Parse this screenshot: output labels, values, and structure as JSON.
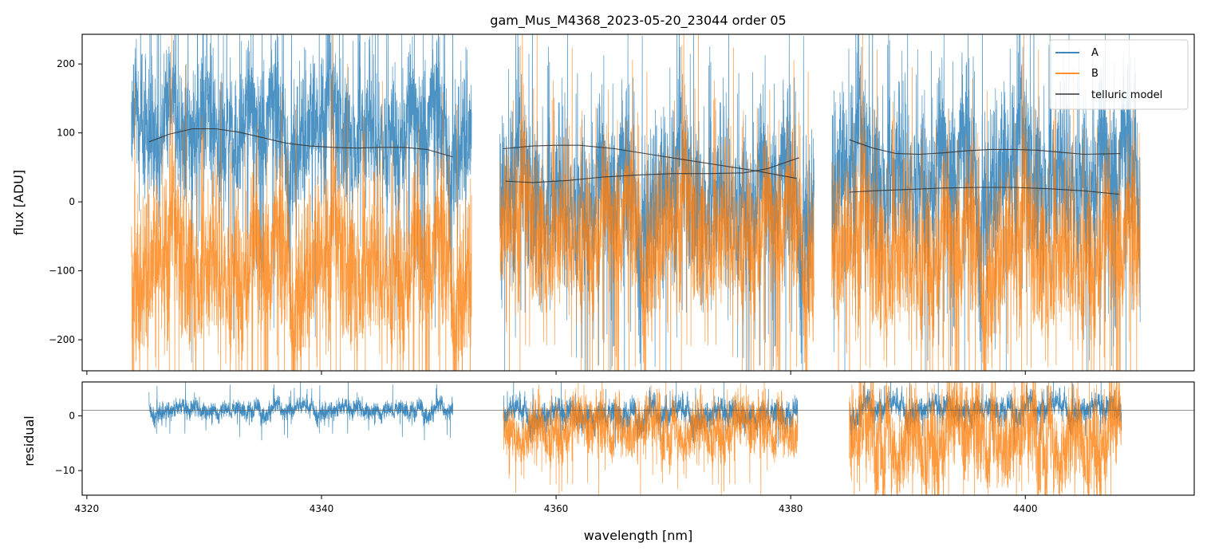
{
  "chart_data": [
    {
      "type": "line",
      "panel": "top",
      "title": "gam_Mus_M4368_2023-05-20_23044  order 05",
      "xlabel": "",
      "ylabel": "flux [ADU]",
      "xlim": [
        4319.6,
        4414.4
      ],
      "ylim": [
        -245,
        243
      ],
      "yticks": [
        -200,
        -100,
        0,
        100,
        200
      ],
      "yticklabels": [
        "−200",
        "−100",
        "0",
        "100",
        "200"
      ],
      "xticks": [
        4320,
        4340,
        4360,
        4380,
        4400
      ],
      "grid": false,
      "legend_position": "top-right",
      "segments": [
        {
          "range": [
            4323.8,
            4352.8
          ],
          "A_center": 105,
          "A_spread": 80,
          "B_center": -90,
          "B_spread": 95
        },
        {
          "range": [
            4355.2,
            4382.0
          ],
          "A_center": 10,
          "A_spread": 95,
          "B_center": -40,
          "B_spread": 90
        },
        {
          "range": [
            4383.5,
            4409.8
          ],
          "A_center": 40,
          "A_spread": 100,
          "B_center": -70,
          "B_spread": 95
        }
      ],
      "series": [
        {
          "name": "A",
          "color": "#1f77b4",
          "style": "noisy spectrum"
        },
        {
          "name": "B",
          "color": "#ff7f0e",
          "style": "noisy spectrum"
        },
        {
          "name": "telluric model",
          "color": "#333333",
          "lines": [
            {
              "x": [
                4325.3,
                4327,
                4329,
                4331,
                4333,
                4335,
                4337,
                4339,
                4341,
                4343,
                4345,
                4347,
                4349,
                4351.2
              ],
              "y": [
                87,
                98,
                106,
                106,
                101,
                93,
                85,
                81,
                79,
                78,
                79,
                79,
                76,
                65
              ]
            },
            {
              "x": [
                4355.5,
                4358,
                4360,
                4362,
                4365,
                4368,
                4371,
                4374,
                4377,
                4380.5
              ],
              "y": [
                77,
                81,
                82,
                82,
                77,
                69,
                61,
                53,
                45,
                34
              ]
            },
            {
              "x": [
                4355.7,
                4358,
                4361,
                4364,
                4367,
                4370,
                4373,
                4376,
                4378,
                4380.7
              ],
              "y": [
                30,
                28,
                31,
                36,
                39,
                41,
                41,
                42,
                48,
                64
              ]
            },
            {
              "x": [
                4385.0,
                4387,
                4389,
                4391,
                4393,
                4395,
                4397,
                4399,
                4401,
                4403,
                4405,
                4408.1
              ],
              "y": [
                90,
                78,
                70,
                69,
                71,
                74,
                76,
                76,
                75,
                72,
                69,
                70
              ]
            },
            {
              "x": [
                4385.0,
                4387,
                4390,
                4393,
                4396,
                4399,
                4402,
                4405,
                4408.0
              ],
              "y": [
                14,
                16,
                18,
                20,
                21,
                21,
                19,
                16,
                11
              ]
            }
          ]
        }
      ]
    },
    {
      "type": "line",
      "panel": "bottom",
      "xlabel": "wavelength [nm]",
      "ylabel": "residual",
      "xlim": [
        4319.6,
        4414.4
      ],
      "ylim": [
        -14.5,
        6.2
      ],
      "yticks": [
        -10,
        0
      ],
      "yticklabels": [
        "−10",
        "0"
      ],
      "xticks": [
        4320,
        4340,
        4360,
        4380,
        4400
      ],
      "xticklabels": [
        "4320",
        "4340",
        "4360",
        "4380",
        "4400"
      ],
      "reference_line": 1,
      "segments": [
        {
          "range": [
            4325.3,
            4351.2
          ],
          "A_center": 1.3,
          "A_spread": 1.4
        },
        {
          "range": [
            4355.5,
            4380.6
          ],
          "A_center": 0.5,
          "A_spread": 2.2,
          "B_center": -2.5,
          "B_spread": 4.5
        },
        {
          "range": [
            4385.0,
            4408.2
          ],
          "A_center": 1.5,
          "A_spread": 2.0,
          "B_center": -4.0,
          "B_spread": 8.0
        }
      ],
      "series": [
        {
          "name": "A",
          "color": "#1f77b4"
        },
        {
          "name": "B",
          "color": "#ff7f0e"
        }
      ]
    }
  ]
}
